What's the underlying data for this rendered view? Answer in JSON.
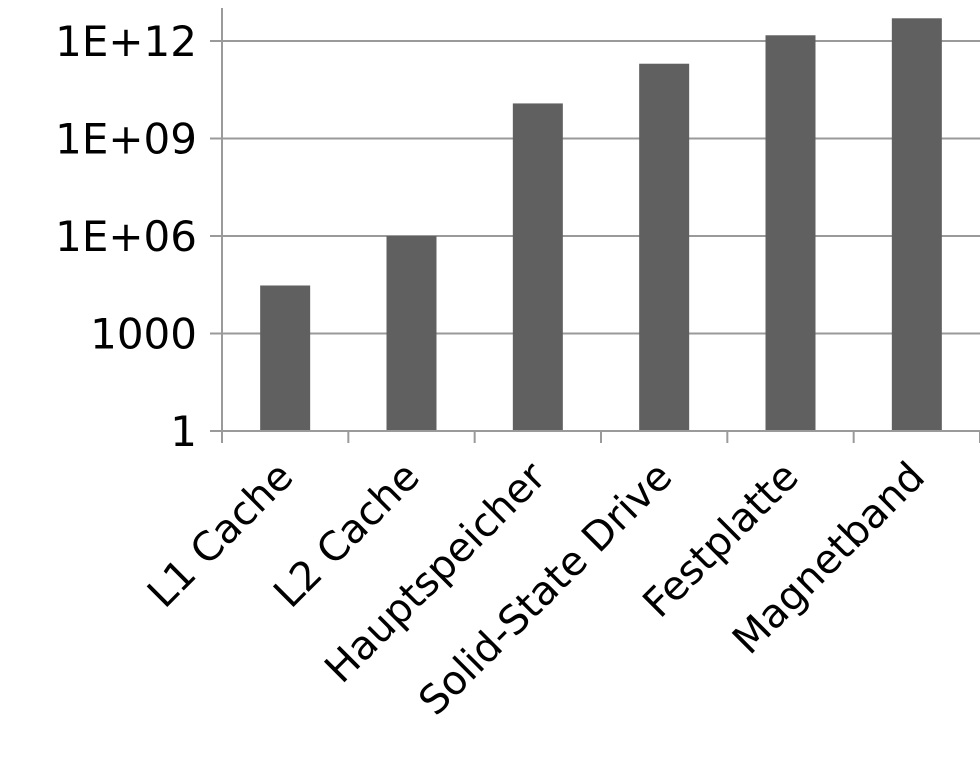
{
  "chart_data": {
    "type": "bar",
    "title": "",
    "xlabel": "",
    "ylabel": "",
    "y_scale": "log",
    "categories": [
      "L1 Cache",
      "L2 Cache",
      "Hauptspeicher",
      "Solid-State Drive",
      "Festplatte",
      "Magnetband"
    ],
    "values": [
      30000,
      1000000,
      12000000000,
      200000000000,
      1500000000000,
      5000000000000
    ],
    "ylim": [
      1,
      5000000000000
    ],
    "y_ticks": [
      {
        "value": 1,
        "label": "1"
      },
      {
        "value": 1000,
        "label": "1000"
      },
      {
        "value": 1000000,
        "label": "1E+06"
      },
      {
        "value": 1000000000,
        "label": "1E+09"
      },
      {
        "value": 1000000000000,
        "label": "1E+12"
      }
    ],
    "grid": true,
    "legend": "none",
    "colors": {
      "bar": "#606060",
      "grid": "#9a9a9a"
    }
  }
}
